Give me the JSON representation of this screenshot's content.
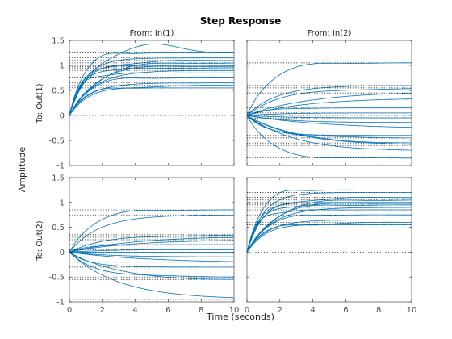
{
  "chart_data": {
    "type": "line",
    "title": "Step Response",
    "xlabel": "Time (seconds)",
    "ylabel": "Amplitude",
    "input_labels": [
      "From: In(1)",
      "From: In(2)"
    ],
    "output_labels": [
      "To: Out(1)",
      "To: Out(2)"
    ],
    "xlim": [
      0,
      10
    ],
    "ylim": [
      -1,
      1.5
    ],
    "xticks": [
      0,
      2,
      4,
      6,
      8,
      10
    ],
    "yticks": [
      -1,
      -0.5,
      0,
      0.5,
      1,
      1.5
    ],
    "line_color": "#0072bd",
    "panels": [
      {
        "id": "out1-in1",
        "steady_states": [
          1.25,
          1.15,
          1.1,
          1.05,
          1.0,
          0.98,
          0.95,
          0.9,
          0.85,
          0.75,
          0.65,
          0.6,
          0.55
        ],
        "overshoot_curve": {
          "peak_time": 5,
          "peak_value": 1.45,
          "final": 1.25
        }
      },
      {
        "id": "out1-in2",
        "steady_states": [
          1.05,
          0.6,
          0.55,
          0.45,
          0.35,
          0.15,
          0.05,
          -0.05,
          -0.15,
          -0.25,
          -0.4,
          -0.45,
          -0.55,
          -0.6,
          -0.75,
          -0.85
        ]
      },
      {
        "id": "out2-in1",
        "steady_states": [
          0.85,
          0.75,
          0.35,
          0.3,
          0.25,
          0.15,
          0.05,
          0.0,
          -0.1,
          -0.2,
          -0.3,
          -0.5,
          -0.55,
          -0.95
        ]
      },
      {
        "id": "out2-in2",
        "steady_states": [
          1.25,
          1.2,
          1.1,
          1.05,
          1.0,
          0.98,
          0.95,
          0.9,
          0.85,
          0.75,
          0.65,
          0.6,
          0.55
        ]
      }
    ]
  }
}
